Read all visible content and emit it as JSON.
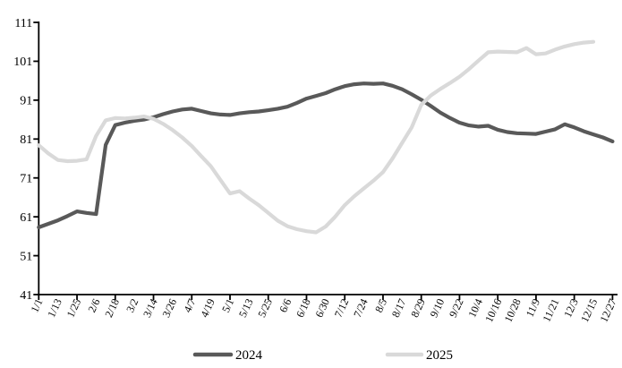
{
  "chart_data": {
    "type": "line",
    "title": "",
    "xlabel": "",
    "ylabel": "",
    "ylim": [
      41,
      111
    ],
    "y_ticks": [
      41,
      51,
      61,
      71,
      81,
      91,
      101,
      111
    ],
    "grid": "off",
    "legend_position": "bottom-center",
    "background_color": "#ffffff",
    "axis_color": "#000000",
    "x_axis_labels": [
      "1/1",
      "1/13",
      "1/25",
      "2/6",
      "2/18",
      "3/2",
      "3/14",
      "3/26",
      "4/7",
      "4/19",
      "5/1",
      "5/13",
      "5/25",
      "6/6",
      "6/18",
      "6/30",
      "7/12",
      "7/24",
      "8/5",
      "8/17",
      "8/29",
      "9/10",
      "9/22",
      "10/4",
      "10/16",
      "10/28",
      "11/9",
      "11/21",
      "12/3",
      "12/15",
      "12/27"
    ],
    "x": [
      "1/1",
      "1/7",
      "1/13",
      "1/19",
      "1/25",
      "1/31",
      "2/6",
      "2/12",
      "2/18",
      "2/24",
      "3/2",
      "3/8",
      "3/14",
      "3/20",
      "3/26",
      "4/1",
      "4/7",
      "4/13",
      "4/19",
      "4/25",
      "5/1",
      "5/7",
      "5/13",
      "5/19",
      "5/25",
      "5/31",
      "6/6",
      "6/12",
      "6/18",
      "6/24",
      "6/30",
      "7/6",
      "7/12",
      "7/18",
      "7/24",
      "7/30",
      "8/5",
      "8/11",
      "8/17",
      "8/23",
      "8/29",
      "9/4",
      "9/10",
      "9/16",
      "9/22",
      "9/28",
      "10/4",
      "10/10",
      "10/16",
      "10/22",
      "10/28",
      "11/3",
      "11/9",
      "11/15",
      "11/21",
      "11/27",
      "12/3",
      "12/9",
      "12/15",
      "12/21",
      "12/27"
    ],
    "series": [
      {
        "name": "2024",
        "color": "#595959",
        "values": [
          58.3,
          59.2,
          60.1,
          61.2,
          62.4,
          62.0,
          61.7,
          79.5,
          84.6,
          85.2,
          85.7,
          86.0,
          86.6,
          87.4,
          88.1,
          88.6,
          88.8,
          88.2,
          87.6,
          87.3,
          87.2,
          87.6,
          87.9,
          88.1,
          88.4,
          88.8,
          89.3,
          90.3,
          91.4,
          92.1,
          92.8,
          93.8,
          94.6,
          95.1,
          95.3,
          95.2,
          95.3,
          94.7,
          93.8,
          92.5,
          91.1,
          89.5,
          87.8,
          86.4,
          85.2,
          84.5,
          84.2,
          84.4,
          83.4,
          82.8,
          82.5,
          82.4,
          82.3,
          82.9,
          83.5,
          84.8,
          84.0,
          83.0,
          82.2,
          81.4,
          80.4
        ]
      },
      {
        "name": "2025",
        "color": "#d9d9d9",
        "values": [
          79.4,
          77.3,
          75.6,
          75.3,
          75.4,
          75.8,
          81.8,
          85.8,
          86.4,
          86.3,
          86.5,
          86.8,
          86.2,
          84.9,
          83.3,
          81.4,
          79.2,
          76.6,
          74.0,
          70.5,
          67.0,
          67.6,
          65.7,
          64.0,
          62.0,
          60.0,
          58.6,
          57.8,
          57.3,
          57.0,
          58.5,
          61.0,
          64.0,
          66.3,
          68.3,
          70.3,
          72.5,
          76.0,
          80.0,
          84.0,
          89.8,
          92.2,
          93.9,
          95.4,
          97.0,
          99.0,
          101.2,
          103.3,
          103.5,
          103.4,
          103.3,
          104.4,
          102.8,
          103.0,
          104.0,
          104.8,
          105.4,
          105.8,
          106.0
        ]
      }
    ]
  }
}
